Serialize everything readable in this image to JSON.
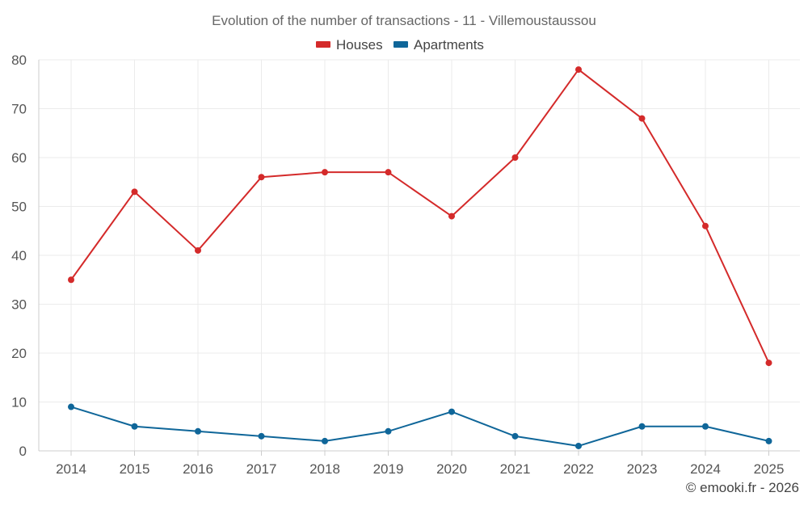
{
  "chart_data": {
    "type": "line",
    "title": "Evolution of the number of transactions - 11 - Villemoustaussou",
    "xlabel": "",
    "ylabel": "",
    "categories": [
      "2014",
      "2015",
      "2016",
      "2017",
      "2018",
      "2019",
      "2020",
      "2021",
      "2022",
      "2023",
      "2024",
      "2025"
    ],
    "ylim": [
      0,
      80
    ],
    "yticks": [
      "0",
      "10",
      "20",
      "30",
      "40",
      "50",
      "60",
      "70",
      "80"
    ],
    "grid": true,
    "legend_position": "top-center",
    "series": [
      {
        "name": "Houses",
        "color": "#d42a2a",
        "values": [
          35,
          53,
          41,
          56,
          57,
          57,
          48,
          60,
          78,
          68,
          46,
          18
        ]
      },
      {
        "name": "Apartments",
        "color": "#0f6699",
        "values": [
          9,
          5,
          4,
          3,
          2,
          4,
          8,
          3,
          1,
          5,
          5,
          2
        ]
      }
    ],
    "credit": "© emooki.fr - 2026"
  }
}
